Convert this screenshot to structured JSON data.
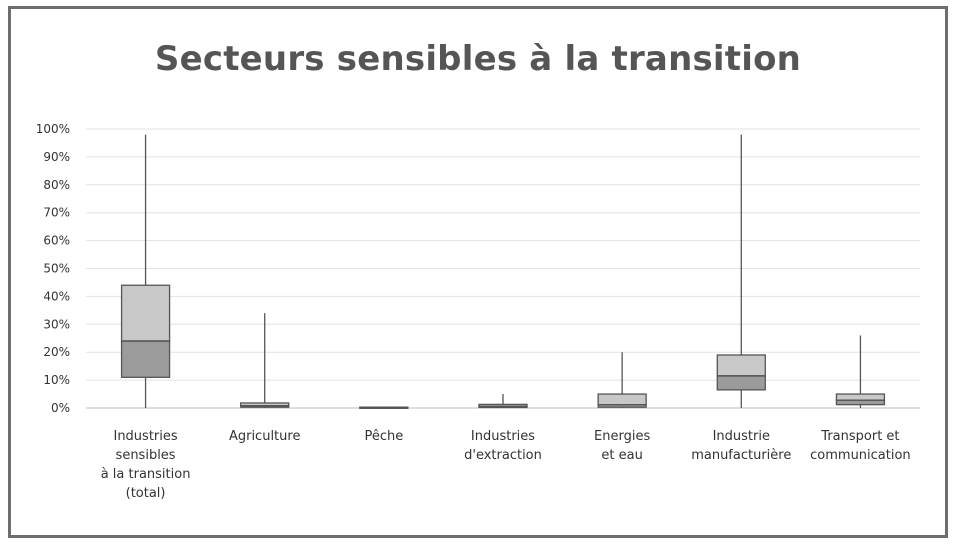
{
  "chart_data": {
    "type": "boxplot",
    "title": "Secteurs sensibles à la transition",
    "xlabel": "",
    "ylabel": "",
    "ylim": [
      0,
      100
    ],
    "yticks": [
      "0%",
      "10%",
      "20%",
      "30%",
      "40%",
      "50%",
      "60%",
      "70%",
      "80%",
      "90%",
      "100%"
    ],
    "categories": [
      [
        "Industries",
        "sensibles",
        "à la transition",
        "(total)"
      ],
      [
        "Agriculture"
      ],
      [
        "Pêche"
      ],
      [
        "Industries",
        "d'extraction"
      ],
      [
        "Energies",
        "et eau"
      ],
      [
        "Industrie",
        "manufacturière"
      ],
      [
        "Transport et",
        "communication"
      ]
    ],
    "boxes": [
      {
        "min": 0,
        "q1": 11,
        "median": 24,
        "q3": 44,
        "max": 98
      },
      {
        "min": 0,
        "q1": 0.3,
        "median": 0.8,
        "q3": 1.8,
        "max": 34
      },
      {
        "min": 0,
        "q1": 0,
        "median": 0.1,
        "q3": 0.3,
        "max": 0.3
      },
      {
        "min": 0,
        "q1": 0.2,
        "median": 0.6,
        "q3": 1.3,
        "max": 5
      },
      {
        "min": 0,
        "q1": 0.3,
        "median": 1.2,
        "q3": 5,
        "max": 20
      },
      {
        "min": 0,
        "q1": 6.5,
        "median": 11.5,
        "q3": 19,
        "max": 98
      },
      {
        "min": 0,
        "q1": 1.2,
        "median": 2.8,
        "q3": 5,
        "max": 26
      }
    ],
    "colors": {
      "upper_box": "#c8c8c8",
      "lower_box": "#9b9b9b",
      "stroke": "#555555",
      "grid": "#e2e2e2"
    }
  }
}
